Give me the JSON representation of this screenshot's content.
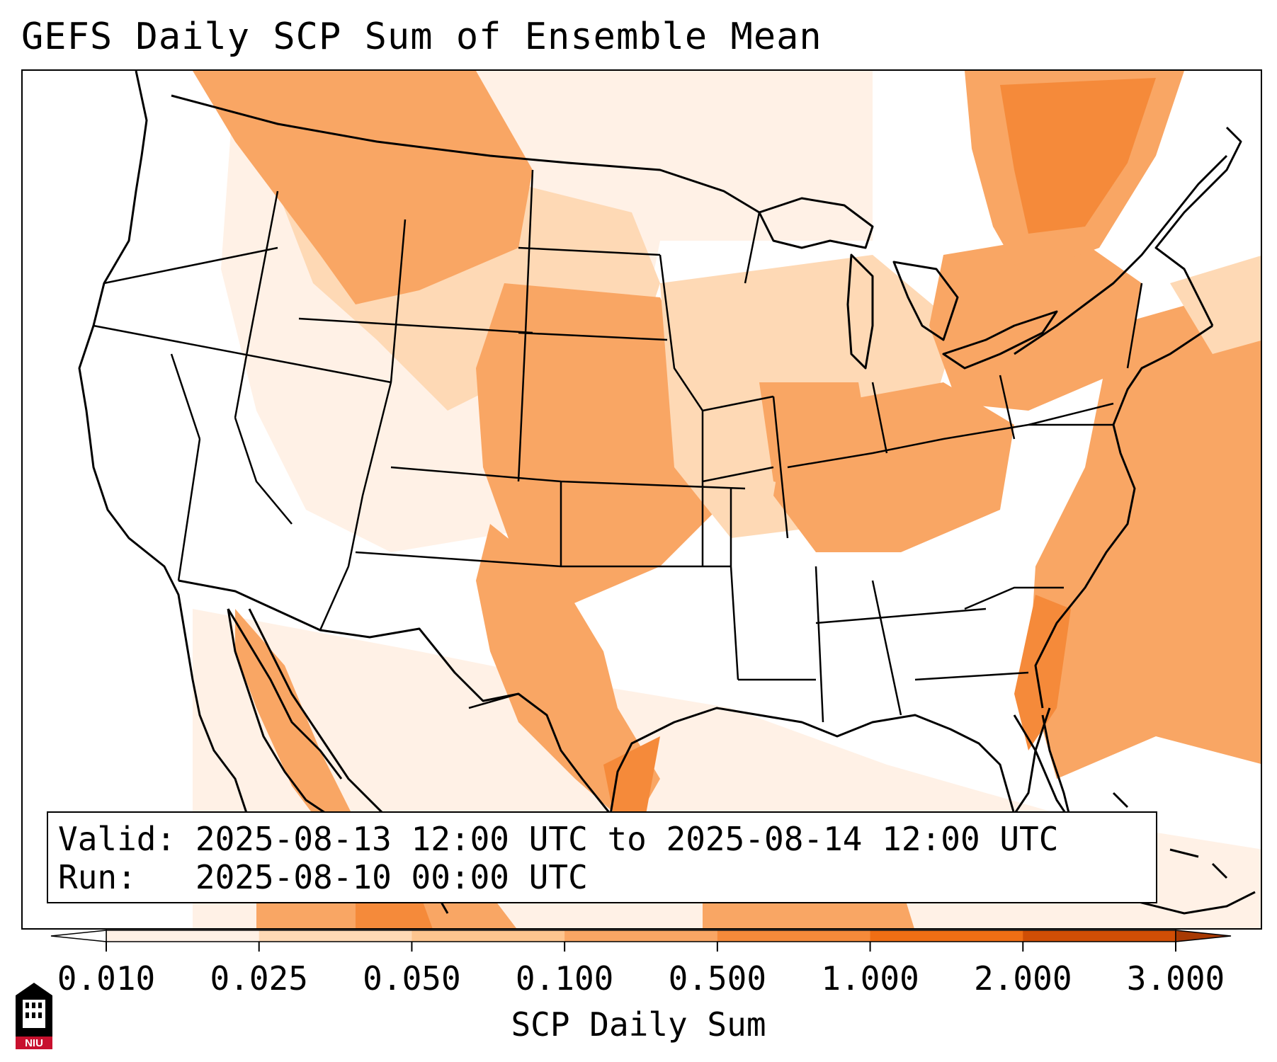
{
  "title": "GEFS Daily SCP Sum of Ensemble Mean",
  "info": {
    "valid_label": "Valid:",
    "valid_value": "2025-08-13 12:00 UTC to 2025-08-14 12:00 UTC",
    "run_label": "Run:",
    "run_value": "2025-08-10 00:00 UTC"
  },
  "colorbar": {
    "label": "SCP Daily Sum",
    "ticks": [
      "0.010",
      "0.025",
      "0.050",
      "0.100",
      "0.500",
      "1.000",
      "2.000",
      "3.000"
    ],
    "colors": [
      "#fff1e6",
      "#fed9b5",
      "#fdc58f",
      "#f9a664",
      "#f58a3a",
      "#ef6e14",
      "#d04e05",
      "#a83a03"
    ],
    "extend": "both"
  },
  "map": {
    "region": "Continental United States",
    "field": "SCP daily sum",
    "colors": {
      "white": "#ffffff",
      "very_light": "#fff1e6",
      "light": "#fed9b5",
      "medium": "#f9a664",
      "strong": "#f58a3a",
      "boundary": "#000000"
    }
  },
  "logo": {
    "text": "NIU",
    "color": "#c8102e"
  }
}
